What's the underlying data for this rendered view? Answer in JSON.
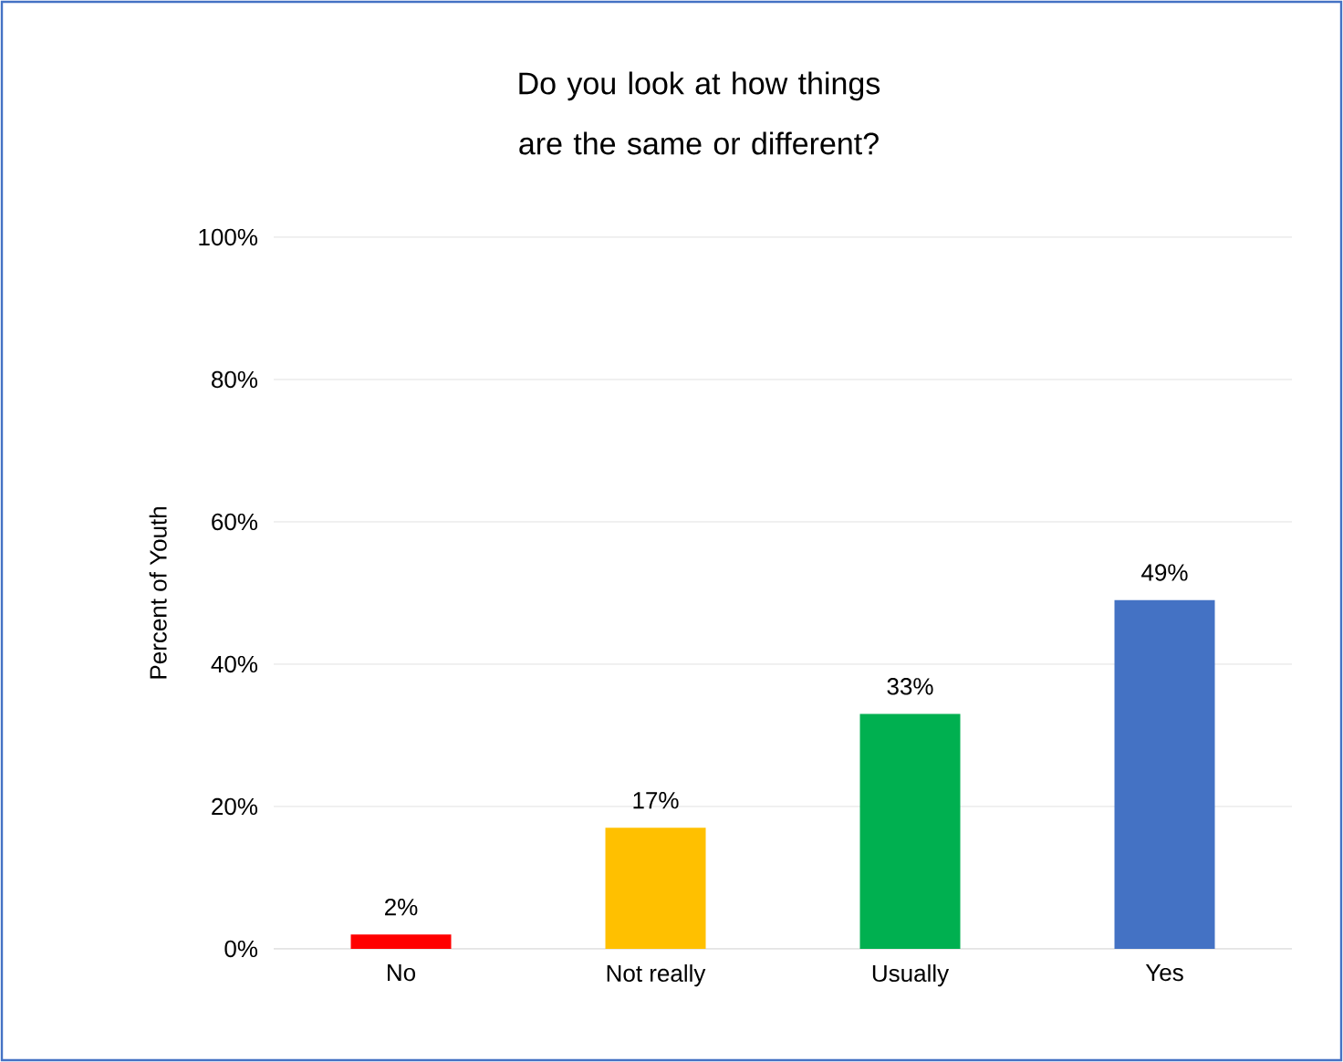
{
  "chart_data": {
    "type": "bar",
    "title": "Do you look at how things are the same or different?",
    "ylabel": "Percent of Youth",
    "categories": [
      "No",
      "Not really",
      "Usually",
      "Yes"
    ],
    "values": [
      2,
      17,
      33,
      49
    ],
    "colors": [
      "#ff0000",
      "#ffc000",
      "#00b050",
      "#4472c4"
    ],
    "value_labels": [
      "2%",
      "17%",
      "33%",
      "49%"
    ],
    "ylim": [
      0,
      100
    ],
    "yticks": [
      {
        "value": 0,
        "label": "0%"
      },
      {
        "value": 20,
        "label": "20%"
      },
      {
        "value": 40,
        "label": "40%"
      },
      {
        "value": 60,
        "label": "60%"
      },
      {
        "value": 80,
        "label": "80%"
      },
      {
        "value": 100,
        "label": "100%"
      }
    ],
    "grid": "y"
  }
}
